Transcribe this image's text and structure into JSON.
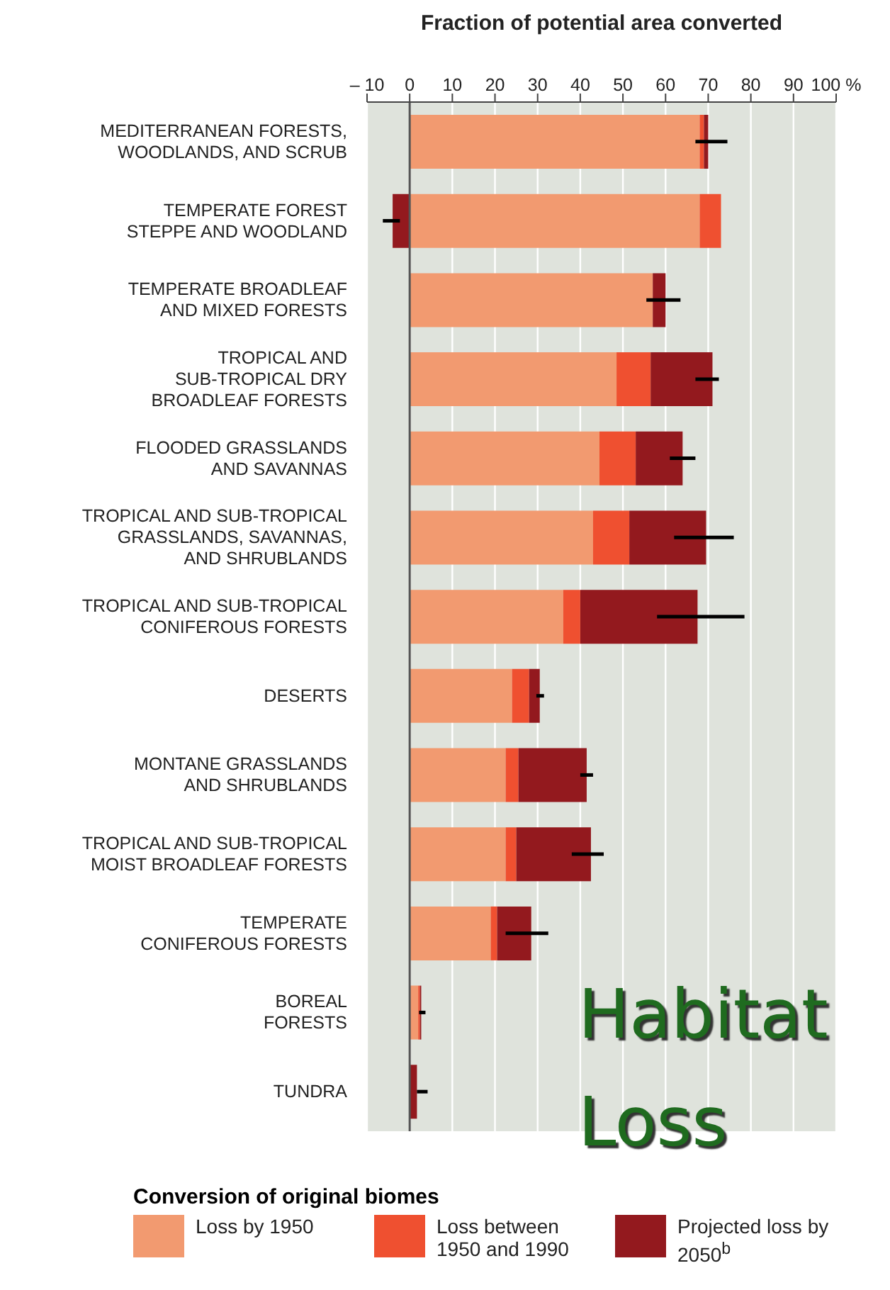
{
  "chart_data": {
    "type": "bar",
    "orientation": "horizontal",
    "stacked": true,
    "xlabel": "Fraction of potential area converted",
    "legend_title": "Conversion of original biomes",
    "categories": [
      "MEDITERRANEAN FORESTS,\nWOODLANDS, AND SCRUB",
      "TEMPERATE FOREST\nSTEPPE AND WOODLAND",
      "TEMPERATE BROADLEAF\nAND MIXED FORESTS",
      "TROPICAL AND\nSUB-TROPICAL DRY\nBROADLEAF FORESTS",
      "FLOODED GRASSLANDS\nAND SAVANNAS",
      "TROPICAL AND SUB-TROPICAL\nGRASSLANDS, SAVANNAS,\nAND SHRUBLANDS",
      "TROPICAL AND SUB-TROPICAL\nCONIFEROUS FORESTS",
      "DESERTS",
      "MONTANE GRASSLANDS\nAND SHRUBLANDS",
      "TROPICAL AND SUB-TROPICAL\nMOIST BROADLEAF FORESTS",
      "TEMPERATE\nCONIFEROUS FORESTS",
      "BOREAL\nFORESTS",
      "TUNDRA"
    ],
    "series": [
      {
        "name": "Loss by 1950",
        "color": "#f29a70",
        "values": [
          68,
          68,
          57,
          48.5,
          44.5,
          43,
          36,
          24,
          22.5,
          22.5,
          19,
          2,
          0
        ]
      },
      {
        "name": "Loss between 1950 and 1990",
        "color": "#ef5030",
        "values": [
          1,
          5,
          0,
          8,
          8.5,
          8.5,
          4,
          4,
          3,
          2.5,
          1.5,
          0.4,
          0
        ]
      },
      {
        "name": "Projected loss by 2050$^{b}$",
        "color": "#93191e",
        "values": [
          1,
          -4,
          3,
          14.5,
          11,
          18,
          27.5,
          2.5,
          16,
          17.5,
          8,
          0.3,
          1.7
        ],
        "errors": [
          [
            67,
            74.5
          ],
          [
            -6.3,
            -2.3
          ],
          [
            55.5,
            63.5
          ],
          [
            67,
            72.5
          ],
          [
            61,
            67
          ],
          [
            62,
            76
          ],
          [
            58,
            78.5
          ],
          [
            29.7,
            31.5
          ],
          [
            40,
            43
          ],
          [
            38,
            45.5
          ],
          [
            22.5,
            32.5
          ],
          [
            2.2,
            3.7
          ],
          [
            1.7,
            4.2
          ]
        ]
      }
    ],
    "xlim": [
      -10,
      100
    ],
    "xticks": [
      {
        "value": -10,
        "label": "– 10"
      },
      0,
      10,
      20,
      30,
      40,
      50,
      60,
      70,
      80,
      90,
      {
        "value": 100,
        "label": "100 %"
      }
    ],
    "grid": "x",
    "legend": "bottom",
    "annotations": [
      "Habitat Loss"
    ]
  }
}
